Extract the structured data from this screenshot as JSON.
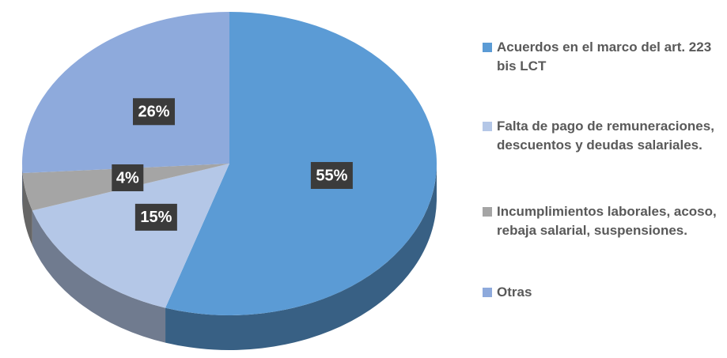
{
  "chart_data": {
    "type": "pie",
    "categories": [
      "Acuerdos en el marco del art. 223 bis LCT",
      "Falta de pago de remuneraciones, descuentos y deudas salariales.",
      "Incumplimientos laborales, acoso, rebaja salarial, suspensiones.",
      "Otras"
    ],
    "values": [
      55,
      15,
      4,
      26
    ],
    "value_labels": [
      "55%",
      "15%",
      "4%",
      "26%"
    ],
    "colors": [
      "#5b9bd5",
      "#b4c7e7",
      "#a5a5a5",
      "#8eaadc"
    ],
    "legend": "right"
  }
}
